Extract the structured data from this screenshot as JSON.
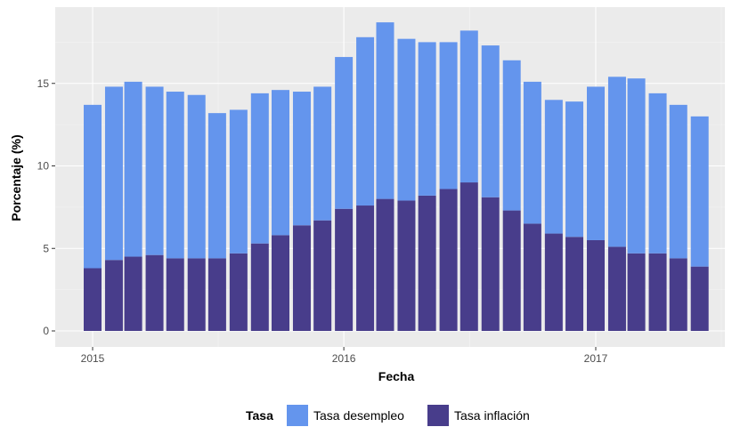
{
  "chart_data": {
    "type": "bar",
    "stacked": true,
    "title": "",
    "xlabel": "Fecha",
    "ylabel": "Porcentaje (%)",
    "ylim": [
      0,
      19
    ],
    "y_ticks": [
      0,
      5,
      10,
      15
    ],
    "y_tick_labels": [
      "0",
      "5",
      "10",
      "15"
    ],
    "x_ticks": [
      "2015-01-01",
      "2016-01-01",
      "2017-01-01"
    ],
    "x_tick_labels": [
      "2015",
      "2016",
      "2017"
    ],
    "x": [
      "2015-01",
      "2015-02",
      "2015-03",
      "2015-04",
      "2015-05",
      "2015-06",
      "2015-07",
      "2015-08",
      "2015-09",
      "2015-10",
      "2015-11",
      "2015-12",
      "2016-01",
      "2016-02",
      "2016-03",
      "2016-04",
      "2016-05",
      "2016-06",
      "2016-07",
      "2016-08",
      "2016-09",
      "2016-10",
      "2016-11",
      "2016-12",
      "2017-01",
      "2017-02",
      "2017-03",
      "2017-04",
      "2017-05",
      "2017-06"
    ],
    "series": [
      {
        "name": "Tasa desempleo",
        "color": "#6495ED",
        "values": [
          9.9,
          10.5,
          10.6,
          10.2,
          10.1,
          9.9,
          8.8,
          8.7,
          9.1,
          8.8,
          8.1,
          8.1,
          9.2,
          10.2,
          10.7,
          9.8,
          9.3,
          8.9,
          9.2,
          9.2,
          9.1,
          8.6,
          8.1,
          8.2,
          9.3,
          10.3,
          10.6,
          9.7,
          9.3,
          9.1
        ]
      },
      {
        "name": "Tasa inflación",
        "color": "#483D8B",
        "values": [
          3.8,
          4.3,
          4.5,
          4.6,
          4.4,
          4.4,
          4.4,
          4.7,
          5.3,
          5.8,
          6.4,
          6.7,
          7.4,
          7.6,
          8.0,
          7.9,
          8.2,
          8.6,
          9.0,
          8.1,
          7.3,
          6.5,
          5.9,
          5.7,
          5.5,
          5.1,
          4.7,
          4.7,
          4.4,
          3.9
        ]
      }
    ],
    "legend": {
      "title": "Tasa",
      "position": "bottom",
      "items": [
        {
          "label": "Tasa desempleo",
          "color": "#6495ED"
        },
        {
          "label": "Tasa inflación",
          "color": "#483D8B"
        }
      ]
    },
    "grid": true,
    "panel_background": "#EBEBEB"
  }
}
